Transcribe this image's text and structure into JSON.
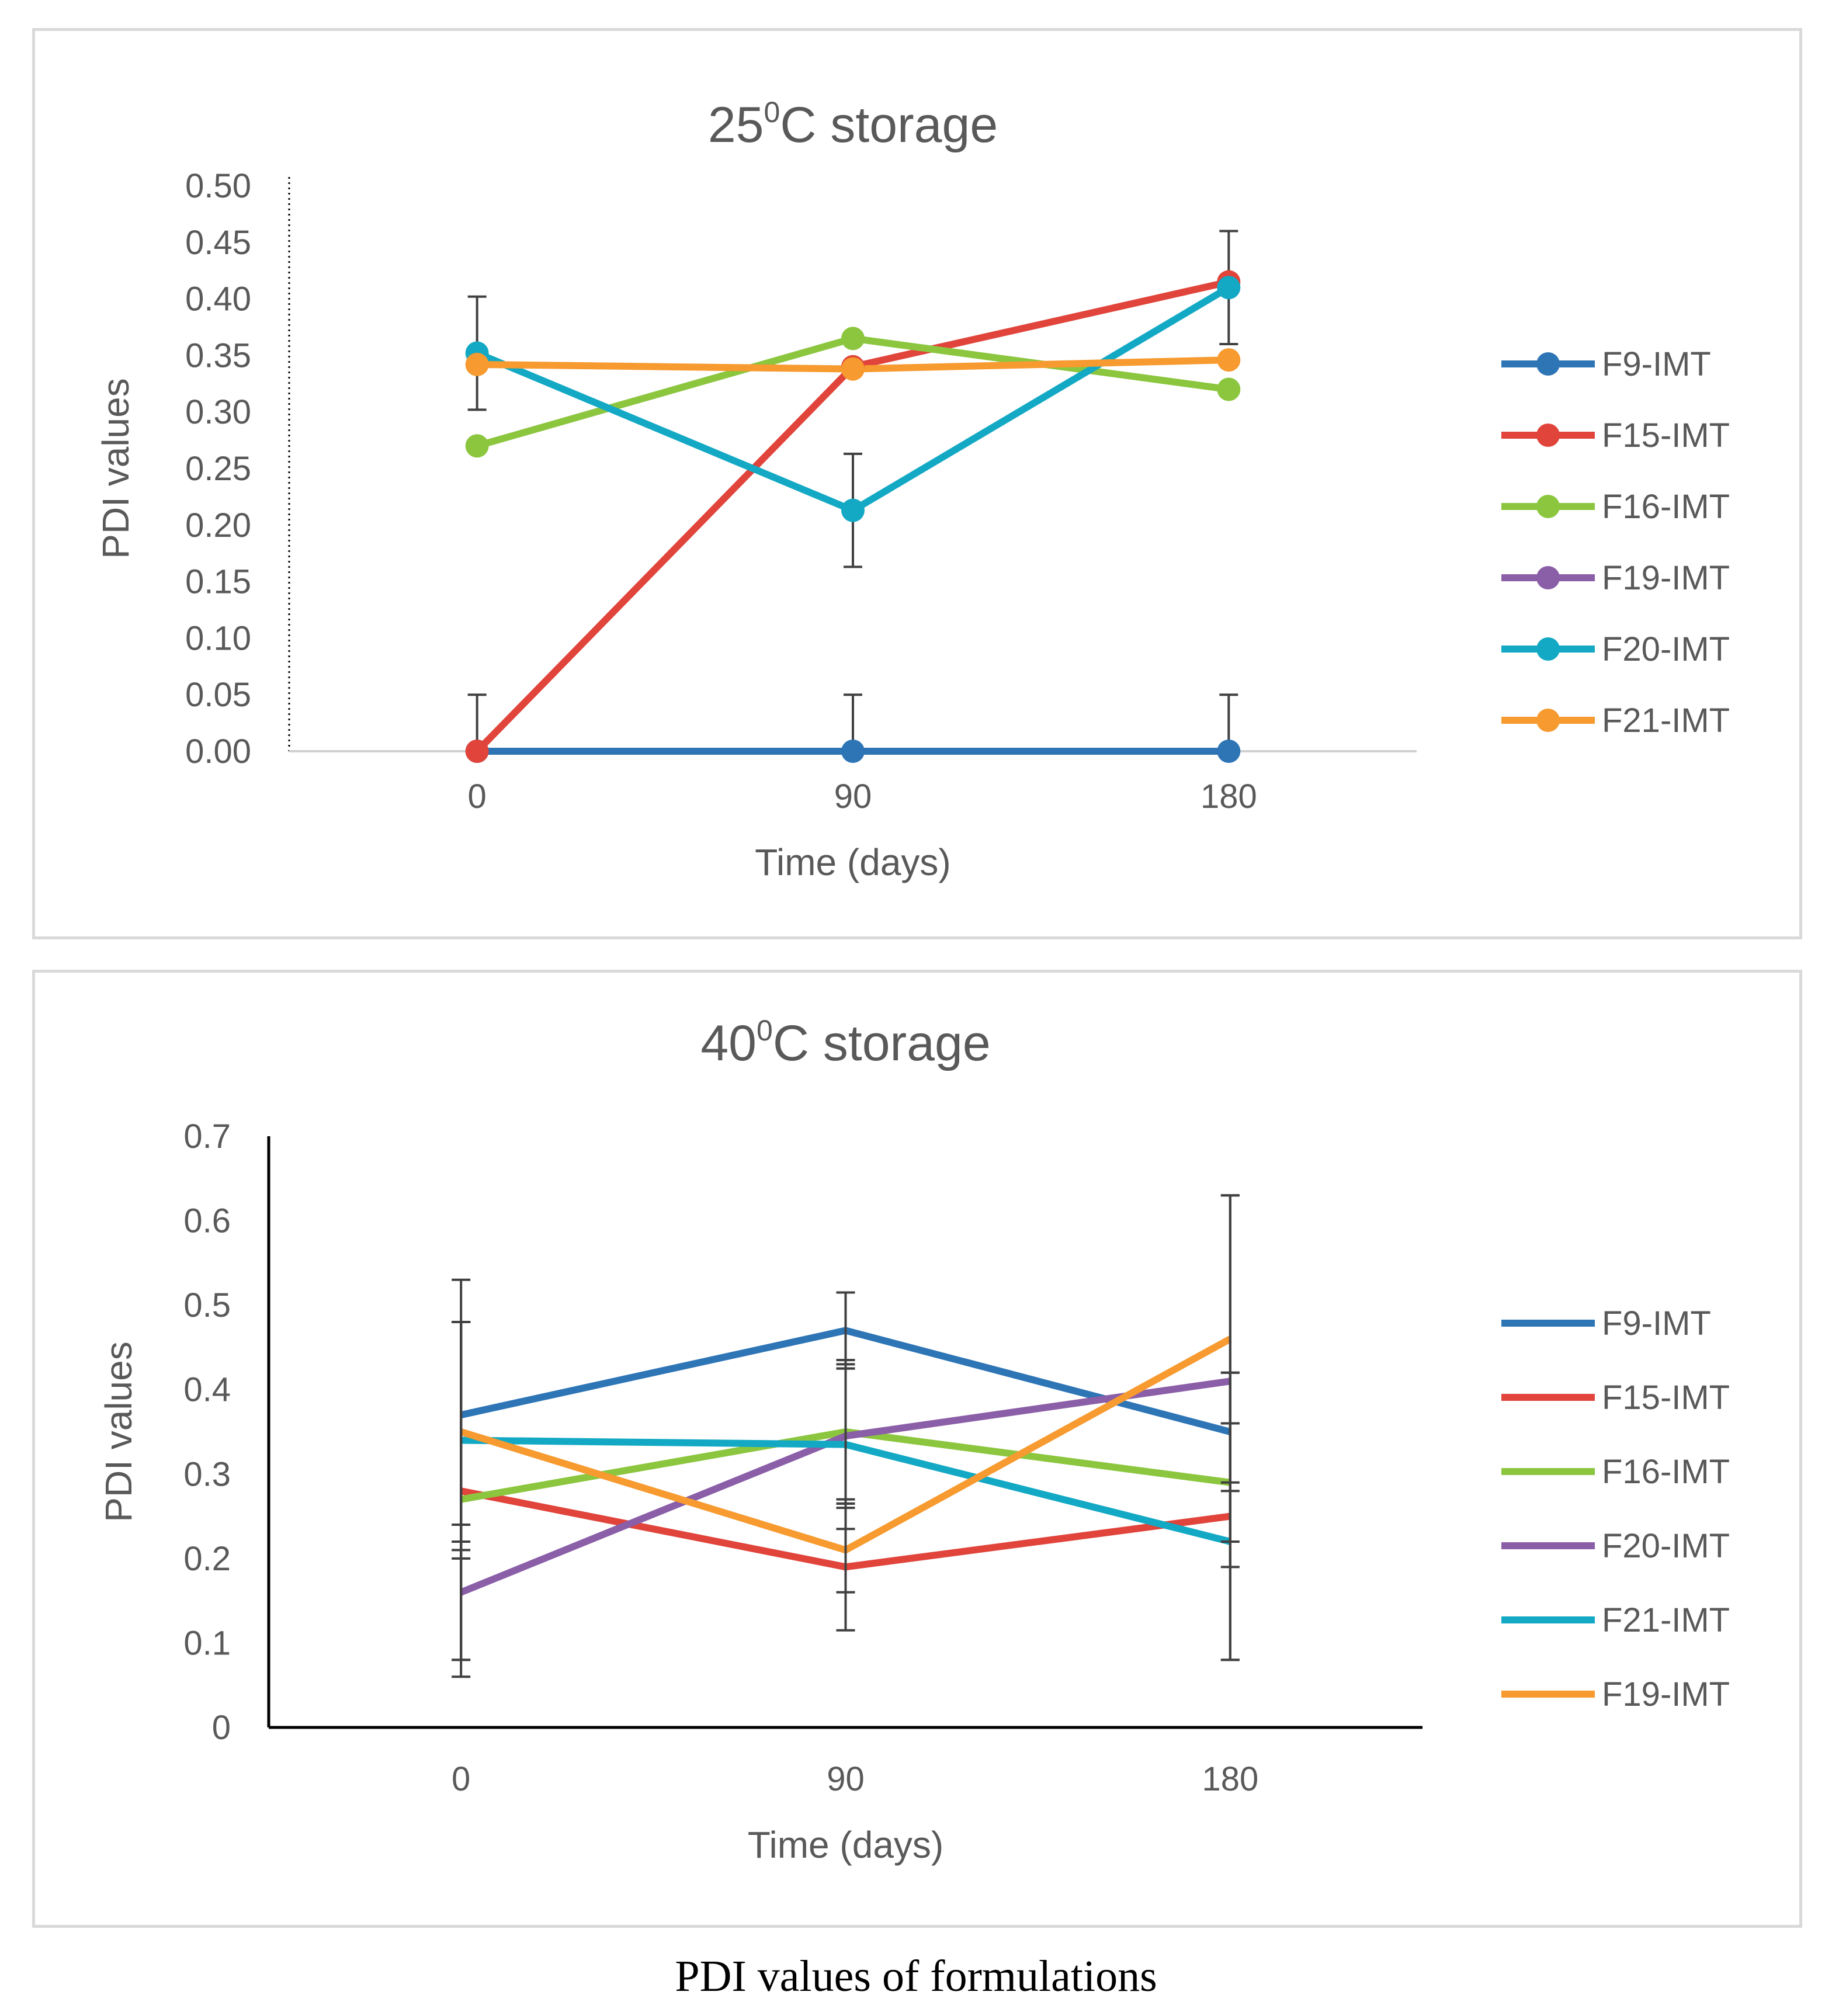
{
  "caption": "PDI values of formulations",
  "chart_data": [
    {
      "type": "line",
      "title_parts": [
        "25",
        "0",
        "C storage"
      ],
      "xlabel": "Time (days)",
      "ylabel": "PDI values",
      "x": [
        "0",
        "90",
        "180"
      ],
      "ylim": [
        0,
        0.5
      ],
      "yticks": [
        "0.00",
        "0.05",
        "0.10",
        "0.15",
        "0.20",
        "0.25",
        "0.30",
        "0.35",
        "0.40",
        "0.45",
        "0.50"
      ],
      "markers": true,
      "legend_position": "right",
      "series": [
        {
          "name": "F9-IMT",
          "color": "#2e75b6",
          "values": [
            0.0,
            0.0,
            0.0
          ],
          "errors": [
            0.05,
            0.05,
            0.05
          ]
        },
        {
          "name": "F15-IMT",
          "color": "#e0443b",
          "values": [
            0.0,
            0.34,
            0.415
          ]
        },
        {
          "name": "F16-IMT",
          "color": "#8cc63f",
          "values": [
            0.27,
            0.365,
            0.32
          ]
        },
        {
          "name": "F19-IMT",
          "color": "#8b5ea8",
          "values": [
            null,
            null,
            null
          ]
        },
        {
          "name": "F20-IMT",
          "color": "#13a9c4",
          "values": [
            0.352,
            0.213,
            0.41
          ],
          "errors": [
            0.05,
            0.05,
            0.05
          ]
        },
        {
          "name": "F21-IMT",
          "color": "#f79a2f",
          "values": [
            0.342,
            0.338,
            0.346
          ]
        }
      ]
    },
    {
      "type": "line",
      "title_parts": [
        "40",
        "0",
        "C storage"
      ],
      "xlabel": "Time (days)",
      "ylabel": "PDI values",
      "x": [
        "0",
        "90",
        "180"
      ],
      "ylim": [
        0,
        0.7
      ],
      "yticks": [
        "0",
        "0.1",
        "0.2",
        "0.3",
        "0.4",
        "0.5",
        "0.6",
        "0.7"
      ],
      "markers": false,
      "legend_position": "right",
      "series": [
        {
          "name": "F9-IMT",
          "color": "#2e75b6",
          "values": [
            0.37,
            0.47,
            0.35
          ],
          "errors": [
            0.16,
            0.045,
            0.07
          ]
        },
        {
          "name": "F15-IMT",
          "color": "#e0443b",
          "values": [
            0.28,
            0.19,
            0.25
          ],
          "errors": [
            0.2,
            0.075,
            0.17
          ]
        },
        {
          "name": "F16-IMT",
          "color": "#8cc63f",
          "values": [
            0.27,
            0.35,
            0.29
          ],
          "errors": [
            0.21,
            0.08,
            0.07
          ]
        },
        {
          "name": "F20-IMT",
          "color": "#8b5ea8",
          "values": [
            0.16,
            0.345,
            0.41
          ],
          "errors": [
            0.08,
            0.08,
            0.22
          ]
        },
        {
          "name": "F21-IMT",
          "color": "#13a9c4",
          "values": [
            0.34,
            0.335,
            0.22
          ],
          "errors": [
            0.14,
            0.1,
            0.14
          ]
        },
        {
          "name": "F19-IMT",
          "color": "#f79a2f",
          "values": [
            0.35,
            0.21,
            0.46
          ],
          "errors": [
            0.13,
            0.05,
            0.17
          ]
        }
      ]
    }
  ]
}
